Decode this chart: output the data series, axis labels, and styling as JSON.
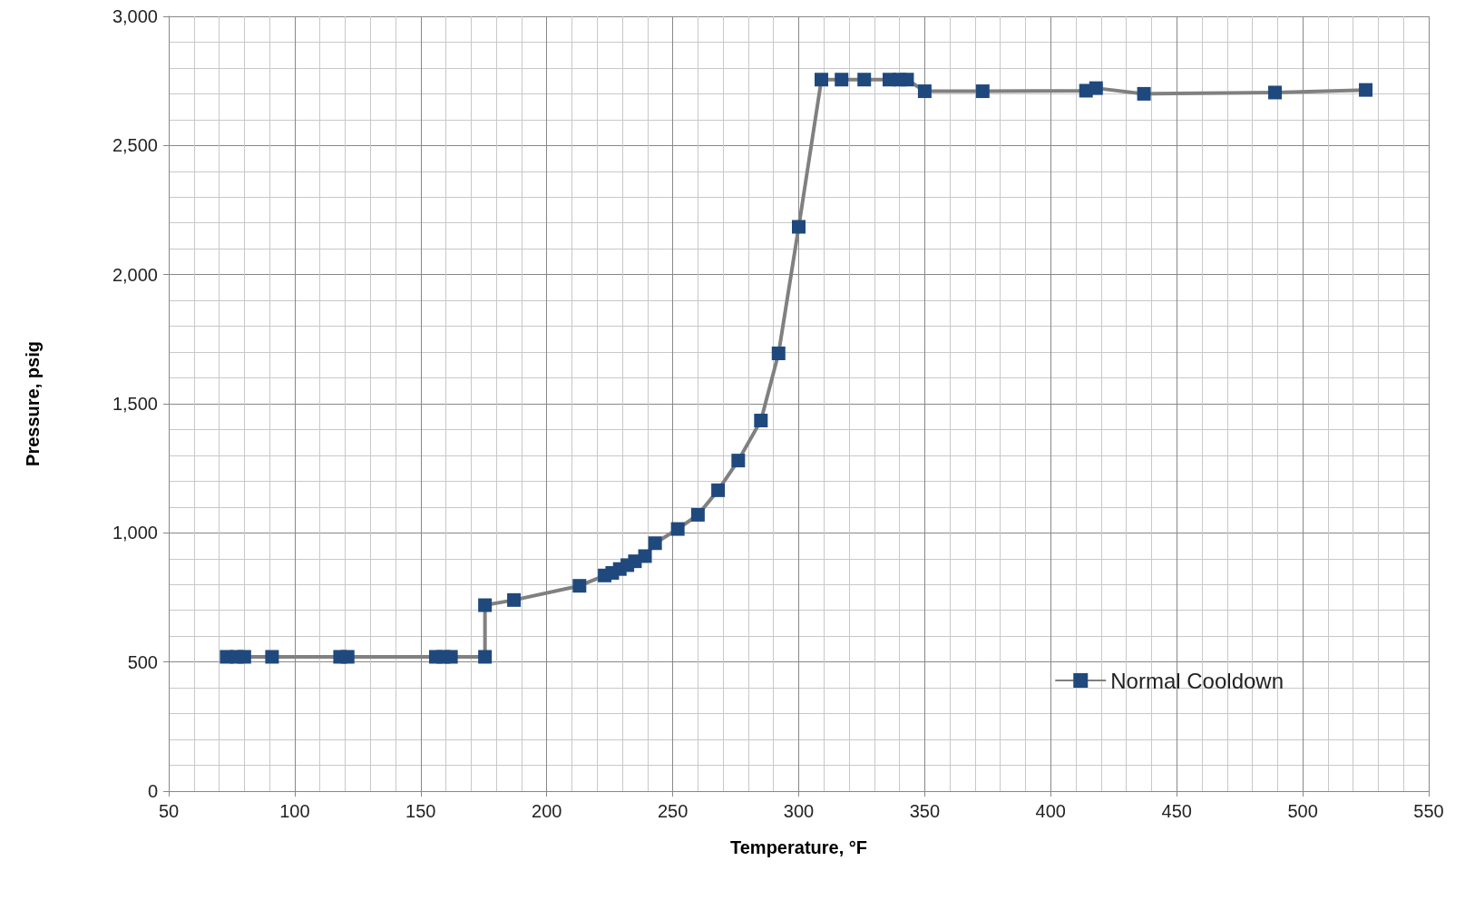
{
  "chart_data": {
    "type": "line",
    "xlabel": "Temperature, °F",
    "ylabel": "Pressure, psig",
    "xlim": [
      50,
      550
    ],
    "xticks": [
      50,
      100,
      150,
      200,
      250,
      300,
      350,
      400,
      450,
      500,
      550
    ],
    "ylim": [
      0,
      3000
    ],
    "yticks": [
      0,
      {
        "value": 500,
        "label": "500"
      },
      {
        "value": 1000,
        "label": "1,000"
      },
      {
        "value": 1500,
        "label": "1,500"
      },
      {
        "value": 2000,
        "label": "2,000"
      },
      {
        "value": 2500,
        "label": "2,500"
      },
      {
        "value": 3000,
        "label": "3,000"
      }
    ],
    "grid": true,
    "legend": "bottom right",
    "marker": "square",
    "line_style": "solid",
    "series": [
      {
        "name": "Normal Cooldown",
        "color": "#1f497d",
        "x": [
          73,
          77,
          80,
          91,
          118,
          121,
          156,
          159,
          162,
          175.5,
          175.5,
          187,
          213,
          223,
          226,
          229,
          232,
          235,
          239,
          243,
          252,
          260,
          268,
          276,
          285,
          292,
          300,
          309,
          317,
          326,
          336,
          340,
          343,
          350,
          373,
          414,
          418,
          437,
          489,
          525
        ],
        "values": [
          520,
          520,
          520,
          520,
          520,
          520,
          520,
          520,
          520,
          520,
          720,
          740,
          795,
          835,
          845,
          860,
          875,
          890,
          910,
          960,
          1015,
          1070,
          1165,
          1280,
          1435,
          1695,
          2185,
          2755,
          2755,
          2755,
          2755,
          2755,
          2755,
          2710,
          2710,
          2712,
          2722,
          2700,
          2705,
          2715
        ]
      }
    ]
  }
}
